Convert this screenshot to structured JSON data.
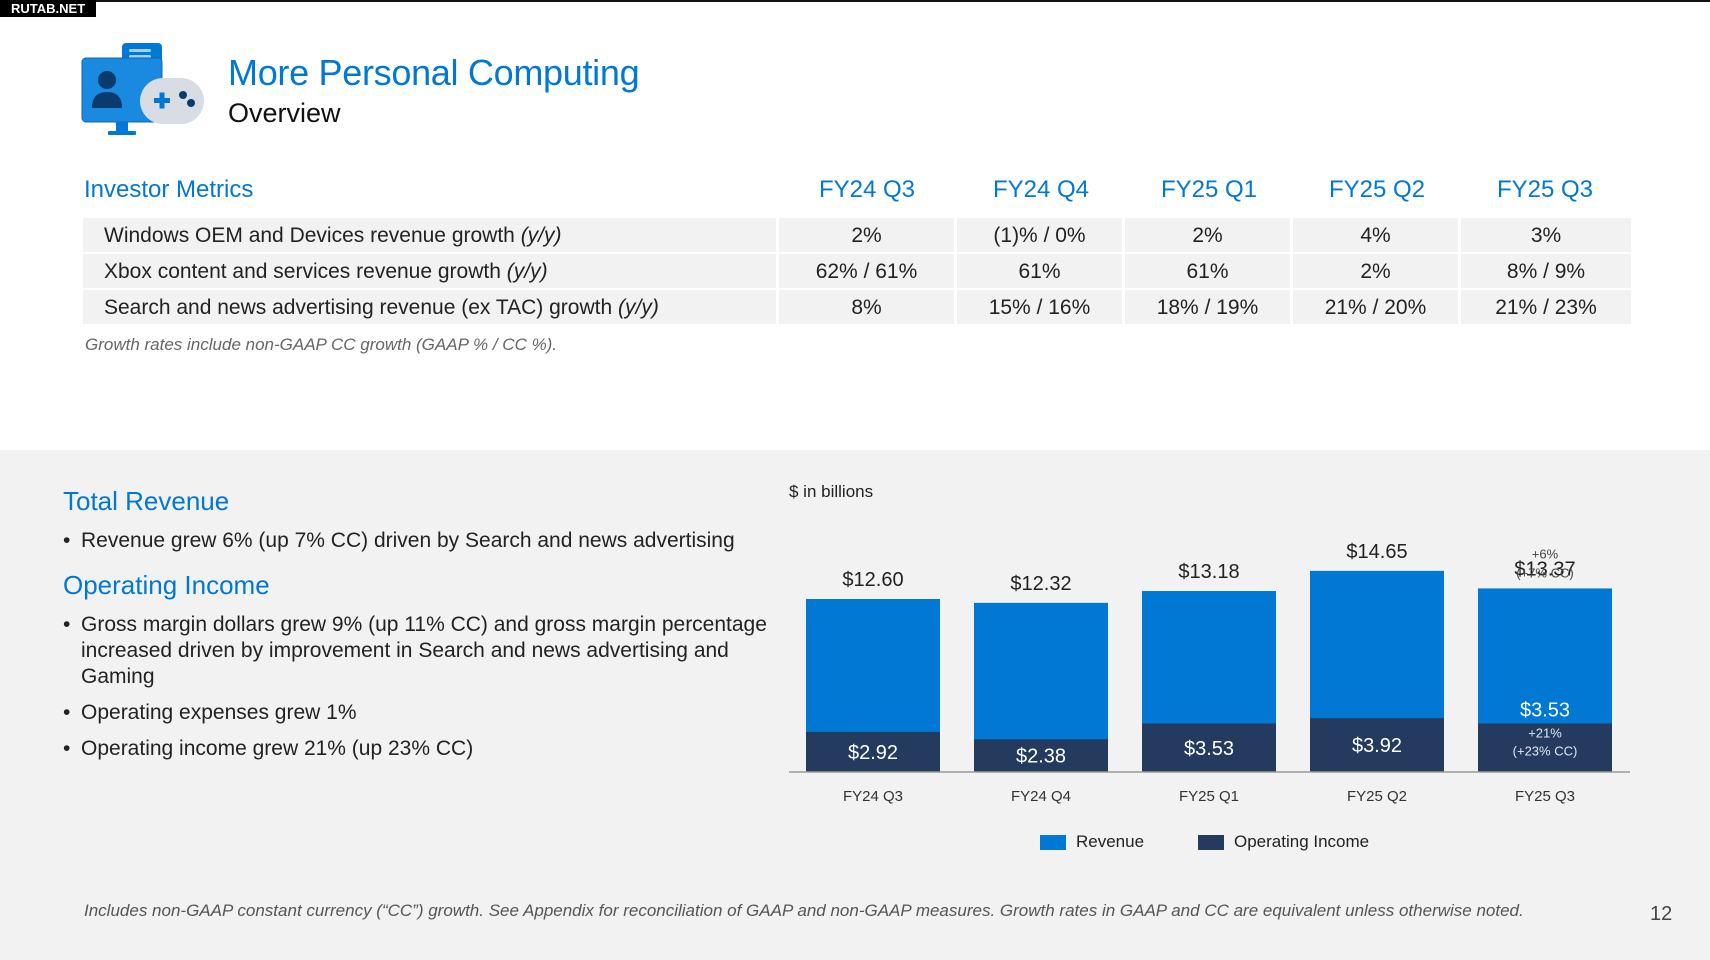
{
  "watermark": "RUTAB.NET",
  "header": {
    "title": "More Personal Computing",
    "subtitle": "Overview"
  },
  "metrics": {
    "heading": "Investor Metrics",
    "columns": [
      "FY24 Q3",
      "FY24 Q4",
      "FY25 Q1",
      "FY25 Q2",
      "FY25 Q3"
    ],
    "rows": [
      {
        "label": "Windows OEM and Devices revenue growth",
        "suffix": "(y/y)",
        "values": [
          "2%",
          "(1)% / 0%",
          "2%",
          "4%",
          "3%"
        ]
      },
      {
        "label": "Xbox content and services revenue growth",
        "suffix": "(y/y)",
        "values": [
          "62% / 61%",
          "61%",
          "61%",
          "2%",
          "8% / 9%"
        ]
      },
      {
        "label": "Search and news advertising revenue (ex TAC) growth",
        "suffix": "(y/y)",
        "values": [
          "8%",
          "15% / 16%",
          "18% / 19%",
          "21% / 20%",
          "21% / 23%"
        ]
      }
    ],
    "note": "Growth rates include non-GAAP CC growth (GAAP % / CC %)."
  },
  "total_revenue": {
    "heading": "Total Revenue",
    "bullets": [
      "Revenue grew 6% (up 7% CC) driven by Search and news advertising"
    ]
  },
  "operating_income": {
    "heading": "Operating Income",
    "bullets": [
      "Gross margin dollars grew 9% (up 11% CC) and gross margin percentage increased driven by improvement in Search and news advertising and Gaming",
      "Operating expenses grew 1%",
      "Operating income grew 21% (up 23% CC)"
    ]
  },
  "chart_data": {
    "type": "bar",
    "unit_label": "$ in billions",
    "categories": [
      "FY24 Q3",
      "FY24 Q4",
      "FY25 Q1",
      "FY25 Q2",
      "FY25 Q3"
    ],
    "series": [
      {
        "name": "Revenue",
        "values": [
          12.6,
          12.32,
          13.18,
          14.65,
          13.37
        ],
        "labels": [
          "$12.60",
          "$12.32",
          "$13.18",
          "$14.65",
          "$13.37"
        ],
        "color": "#0078d4"
      },
      {
        "name": "Operating Income",
        "values": [
          2.92,
          2.38,
          3.53,
          3.92,
          3.53
        ],
        "labels": [
          "$2.92",
          "$2.38",
          "$3.53",
          "$3.92",
          "$3.53"
        ],
        "color": "#243a5e"
      }
    ],
    "annotations": [
      {
        "category": "FY25 Q3",
        "series": "Revenue",
        "lines": [
          "+6%",
          "(+7% CC)"
        ]
      },
      {
        "category": "FY25 Q3",
        "series": "Operating Income",
        "lines": [
          "+21%",
          "(+23% CC)"
        ]
      }
    ],
    "legend_position": "bottom",
    "grid": false
  },
  "footnote": "Includes non-GAAP constant currency (“CC”) growth. See Appendix for reconciliation of GAAP and non-GAAP measures. Growth rates in GAAP and CC are equivalent unless otherwise noted.",
  "page_number": "12",
  "colors": {
    "accent": "#0078d4",
    "dark_navy": "#243a5e",
    "panel_bg": "#f2f2f2"
  },
  "icons": [
    "devices-gaming-icon"
  ]
}
